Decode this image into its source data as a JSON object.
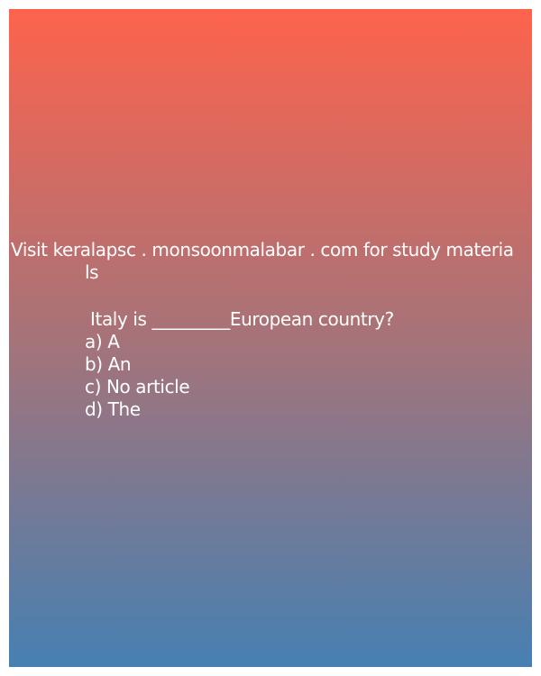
{
  "banner": {
    "line1": "Visit keralapsc . monsoonmalabar . com for study materia",
    "line2": "ls"
  },
  "question": {
    "text": "Italy is _________European country?",
    "options": [
      "a) A",
      "b) An",
      "c) No article",
      "d) The"
    ]
  },
  "colors": {
    "gradient_top": "#fe634c",
    "gradient_middle": "#a67379",
    "gradient_bottom": "#4680b2",
    "text": "#ffffff"
  }
}
